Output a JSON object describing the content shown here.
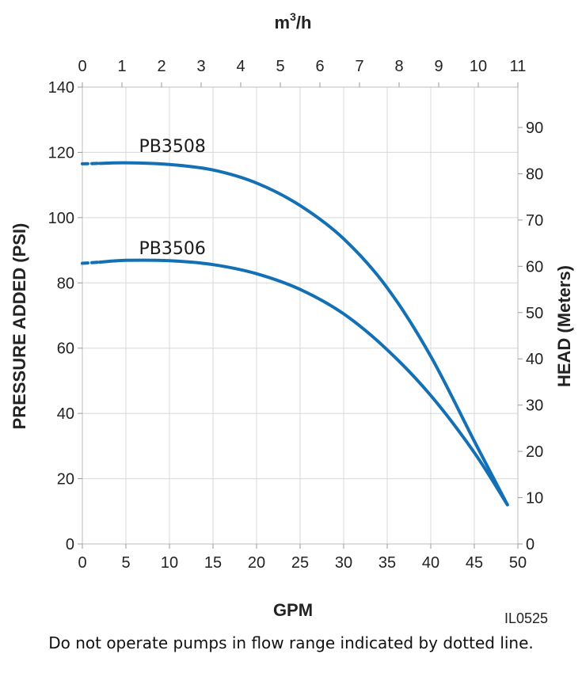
{
  "chart_data": {
    "type": "line",
    "x": [
      0,
      5,
      10,
      15,
      20,
      25,
      30,
      35,
      40,
      45,
      48.8
    ],
    "series": [
      {
        "name": "PB3508",
        "values": [
          116.5,
          116.8,
          116.3,
          114.6,
          110.6,
          103.7,
          93.5,
          78.5,
          57.5,
          31.5,
          12.0
        ]
      },
      {
        "name": "PB3506",
        "values": [
          86.0,
          86.9,
          86.8,
          85.6,
          82.8,
          78.0,
          70.5,
          59.5,
          45.5,
          28.0,
          12.0
        ]
      }
    ],
    "dotted_until_x": 2,
    "xlabel": "GPM",
    "ylabel": "PRESSURE ADDED (PSI)",
    "top_xlabel_base": "m",
    "top_xlabel_sup": "3",
    "top_xlabel_tail": "/h",
    "right_ylabel": "HEAD (Meters)",
    "xlim": [
      0,
      50
    ],
    "ylim": [
      0,
      140
    ],
    "top_xlim": [
      0,
      11
    ],
    "right_ylim": [
      0,
      90
    ],
    "x_ticks": [
      "0",
      "5",
      "10",
      "15",
      "20",
      "25",
      "30",
      "35",
      "40",
      "45",
      "50"
    ],
    "y_ticks": [
      "0",
      "20",
      "40",
      "60",
      "80",
      "100",
      "120",
      "140"
    ],
    "top_ticks": [
      "0",
      "1",
      "2",
      "3",
      "4",
      "5",
      "6",
      "7",
      "8",
      "9",
      "10",
      "11"
    ],
    "right_ticks": [
      "0",
      "10",
      "20",
      "30",
      "40",
      "50",
      "60",
      "70",
      "80",
      "90"
    ],
    "grid": true,
    "line_color": "#1370b5",
    "grid_color": "#d8d8d8",
    "code": "IL0525"
  },
  "footnote": "Do not operate pumps in flow range indicated by dotted line."
}
